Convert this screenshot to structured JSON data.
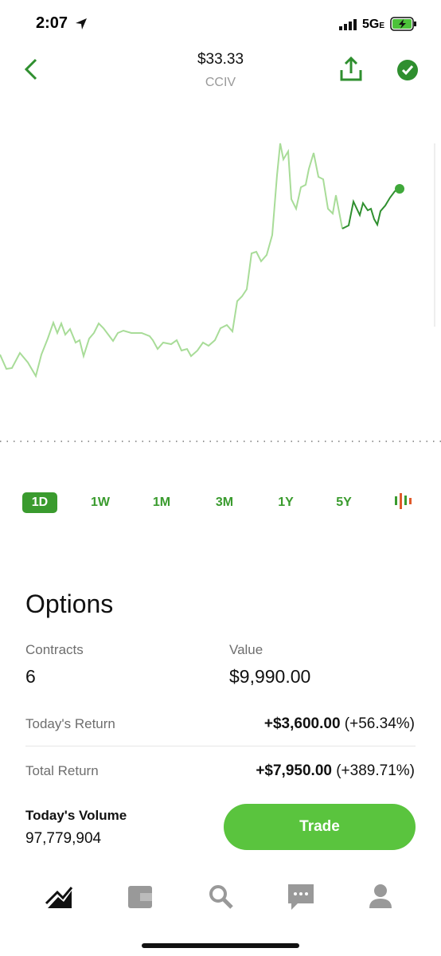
{
  "status": {
    "time": "2:07",
    "network": "5G",
    "network_sub": "E"
  },
  "header": {
    "price": "$33.33",
    "symbol": "CCIV"
  },
  "ranges": [
    "1D",
    "1W",
    "1M",
    "3M",
    "1Y",
    "5Y"
  ],
  "options": {
    "title": "Options",
    "contracts": {
      "label": "Contracts",
      "value": "6"
    },
    "value": {
      "label": "Value",
      "value": "$9,990.00"
    },
    "todays_return": {
      "label": "Today's Return",
      "amount": "+$3,600.00",
      "percent": "(+56.34%)"
    },
    "total_return": {
      "label": "Total Return",
      "amount": "+$7,950.00",
      "percent": "(+389.71%)"
    },
    "volume": {
      "label": "Today's Volume",
      "value": "97,779,904"
    },
    "button": "Trade"
  }
}
